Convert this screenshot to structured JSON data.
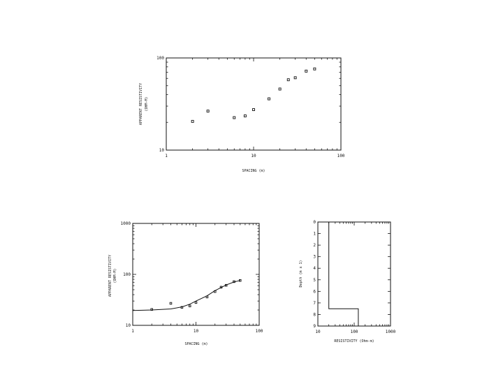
{
  "chart_data": [
    {
      "type": "scatter",
      "xlabel": "SPACING (m)",
      "ylabel_line1": "APPARENT RESISTIVITY",
      "ylabel_line2": "(OHM-M)",
      "xscale": "log",
      "yscale": "log",
      "xlim": [
        1,
        100
      ],
      "ylim": [
        10,
        100
      ],
      "xticks": [
        "1",
        "10",
        "100"
      ],
      "yticks": [
        "10",
        "100"
      ],
      "x": [
        2,
        3,
        6,
        8,
        10,
        15,
        20,
        25,
        30,
        40,
        50
      ],
      "y": [
        20.5,
        26.5,
        22.5,
        23.5,
        27.5,
        36,
        46,
        58,
        61,
        72,
        76
      ]
    },
    {
      "type": "scatter",
      "xlabel": "SPACING (m)",
      "ylabel_line1": "APPARENT RESISTIVITY",
      "ylabel_line2": "(OHM-M)",
      "xscale": "log",
      "yscale": "log",
      "xlim": [
        1,
        100
      ],
      "ylim": [
        10,
        1000
      ],
      "xticks": [
        "1",
        "10",
        "100"
      ],
      "yticks": [
        "10",
        "100",
        "1000"
      ],
      "x": [
        2,
        4,
        6,
        8,
        10,
        15,
        20,
        25,
        30,
        40,
        50
      ],
      "y": [
        20.5,
        27,
        22.5,
        24,
        28,
        36,
        46,
        56,
        61,
        72,
        76
      ],
      "fit_x": [
        1,
        2,
        4,
        6,
        8,
        10,
        15,
        20,
        30,
        40,
        50
      ],
      "fit_y": [
        19.5,
        20,
        21,
        23,
        26,
        30,
        38,
        48,
        62,
        71,
        76
      ]
    },
    {
      "type": "line",
      "xlabel": "RESISTIVITY (Ohm-m)",
      "ylabel": "Depth (m x 1)",
      "xscale": "log",
      "xlim": [
        10,
        1000
      ],
      "ylim": [
        0,
        9
      ],
      "xticks": [
        "10",
        "100",
        "1000"
      ],
      "yticks": [
        "0",
        "1",
        "2",
        "3",
        "4",
        "5",
        "6",
        "7",
        "8",
        "9"
      ],
      "layers": [
        {
          "resistivity": 20,
          "top": 0,
          "bottom": 7.5
        },
        {
          "resistivity": 130,
          "top": 7.5,
          "bottom": 9
        }
      ]
    }
  ]
}
